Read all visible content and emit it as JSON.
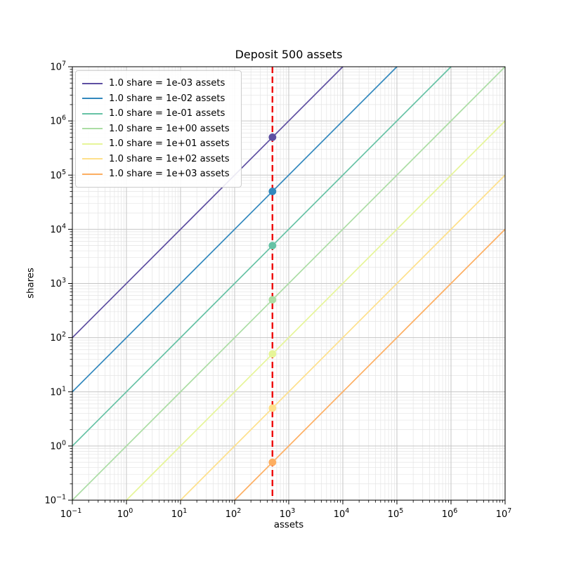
{
  "chart_data": {
    "type": "line",
    "title": "Deposit 500 assets",
    "xlabel": "assets",
    "ylabel": "shares",
    "x_scale": "log",
    "y_scale": "log",
    "xlim": [
      0.1,
      10000000
    ],
    "ylim": [
      0.1,
      10000000
    ],
    "x_log_range": [
      -1,
      7
    ],
    "y_log_range": [
      -1,
      7
    ],
    "x_tick_exponents": [
      -1,
      0,
      1,
      2,
      3,
      4,
      5,
      6,
      7
    ],
    "y_tick_exponents": [
      -1,
      0,
      1,
      2,
      3,
      4,
      5,
      6,
      7
    ],
    "grid": true,
    "grid_which": "both",
    "legend_position": "upper left",
    "deposit_assets": 500,
    "series": [
      {
        "name": "1.0 share = 1e-03 assets",
        "rate": 0.001,
        "color": "#5e4fa2",
        "point": {
          "x": 500,
          "y": 500000
        }
      },
      {
        "name": "1.0 share = 1e-02 assets",
        "rate": 0.01,
        "color": "#3288bd",
        "point": {
          "x": 500,
          "y": 50000
        }
      },
      {
        "name": "1.0 share = 1e-01 assets",
        "rate": 0.1,
        "color": "#66c2a5",
        "point": {
          "x": 500,
          "y": 5000
        }
      },
      {
        "name": "1.0 share = 1e+00 assets",
        "rate": 1.0,
        "color": "#abdda4",
        "point": {
          "x": 500,
          "y": 500
        }
      },
      {
        "name": "1.0 share = 1e+01 assets",
        "rate": 10.0,
        "color": "#e6f598",
        "point": {
          "x": 500,
          "y": 50
        }
      },
      {
        "name": "1.0 share = 1e+02 assets",
        "rate": 100.0,
        "color": "#fee08b",
        "point": {
          "x": 500,
          "y": 5
        }
      },
      {
        "name": "1.0 share = 1e+03 assets",
        "rate": 1000.0,
        "color": "#fdae61",
        "point": {
          "x": 500,
          "y": 0.5
        }
      }
    ],
    "vline": {
      "x": 500,
      "color": "#ee0000",
      "style": "dashed"
    },
    "colors": {
      "major_grid": "#c6c6c6",
      "minor_grid": "#e4e4e4",
      "spine": "#000000",
      "tick": "#000000",
      "tick_label": "#000000"
    }
  }
}
